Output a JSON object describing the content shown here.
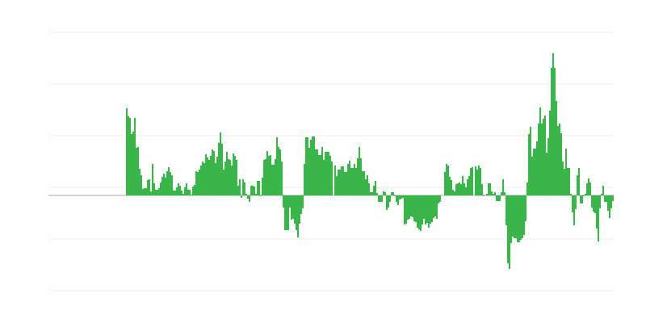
{
  "chart_data": {
    "type": "bar",
    "title": "",
    "xlabel": "",
    "ylabel": "",
    "ylim": [
      -118,
      202
    ],
    "gridlines_at": [
      202,
      138,
      74,
      10,
      -54,
      -118
    ],
    "grid": true,
    "legend": "none",
    "colors": {
      "bar": "#39b54a",
      "grid": "#ebebeb",
      "baseline": "#aaaaaa"
    },
    "values": [
      null,
      null,
      null,
      null,
      null,
      null,
      null,
      null,
      null,
      null,
      null,
      null,
      null,
      null,
      null,
      null,
      null,
      null,
      null,
      null,
      null,
      null,
      null,
      null,
      null,
      null,
      null,
      null,
      null,
      null,
      null,
      null,
      null,
      null,
      null,
      null,
      null,
      null,
      null,
      null,
      null,
      null,
      null,
      null,
      null,
      null,
      null,
      null,
      108,
      98,
      96,
      76,
      79,
      96,
      59,
      60,
      33,
      25,
      8,
      9,
      9,
      19,
      20,
      5,
      39,
      15,
      7,
      7,
      9,
      16,
      23,
      27,
      22,
      30,
      35,
      29,
      25,
      6,
      6,
      10,
      15,
      12,
      6,
      2,
      10,
      15,
      7,
      7,
      1,
      11,
      13,
      30,
      29,
      32,
      37,
      42,
      40,
      51,
      47,
      44,
      49,
      57,
      55,
      40,
      48,
      65,
      78,
      64,
      32,
      42,
      54,
      45,
      44,
      37,
      52,
      49,
      44,
      12,
      20,
      -3,
      20,
      16,
      2,
      -4,
      -8,
      12,
      12,
      11,
      2,
      18,
      18,
      -1,
      22,
      44,
      45,
      55,
      49,
      50,
      38,
      38,
      45,
      72,
      60,
      57,
      42,
      -15,
      -43,
      -43,
      -43,
      -15,
      -30,
      -29,
      -35,
      -43,
      -52,
      -35,
      -23,
      -16,
      39,
      72,
      72,
      59,
      69,
      73,
      73,
      57,
      57,
      50,
      50,
      60,
      44,
      54,
      54,
      54,
      49,
      42,
      0,
      37,
      24,
      32,
      32,
      36,
      36,
      29,
      29,
      39,
      43,
      34,
      34,
      39,
      34,
      46,
      60,
      46,
      30,
      30,
      20,
      25,
      15,
      4,
      4,
      12,
      18,
      3,
      -8,
      -8,
      -8,
      5,
      4,
      -18,
      -15,
      -8,
      4,
      4,
      -1,
      -8,
      -12,
      -5,
      -4,
      -3,
      -36,
      -35,
      -30,
      -29,
      -26,
      -27,
      -32,
      -33,
      -40,
      -42,
      -44,
      -36,
      -29,
      -36,
      -34,
      -40,
      -35,
      -33,
      -28,
      -26,
      -29,
      -10,
      -8,
      0,
      0,
      29,
      39,
      37,
      23,
      19,
      7,
      5,
      14,
      15,
      16,
      14,
      24,
      15,
      10,
      20,
      24,
      34,
      35,
      0,
      36,
      32,
      37,
      34,
      14,
      -1,
      0,
      2,
      15,
      15,
      5,
      2,
      4,
      -7,
      -7,
      -7,
      4,
      20,
      4,
      -37,
      -84,
      -91,
      -59,
      -51,
      -53,
      -53,
      -58,
      -58,
      -55,
      -53,
      -49,
      -32,
      16,
      76,
      85,
      48,
      58,
      58,
      67,
      89,
      109,
      89,
      95,
      99,
      53,
      71,
      105,
      158,
      176,
      158,
      117,
      86,
      89,
      77,
      42,
      33,
      58,
      34,
      34,
      2,
      -21,
      -37,
      -17,
      25,
      34,
      -10,
      -10,
      -1,
      2,
      15,
      21,
      16,
      -15,
      -20,
      -22,
      -41,
      -57,
      -16,
      2,
      12,
      -8,
      -8,
      -19,
      -28,
      -16,
      -7
    ]
  }
}
